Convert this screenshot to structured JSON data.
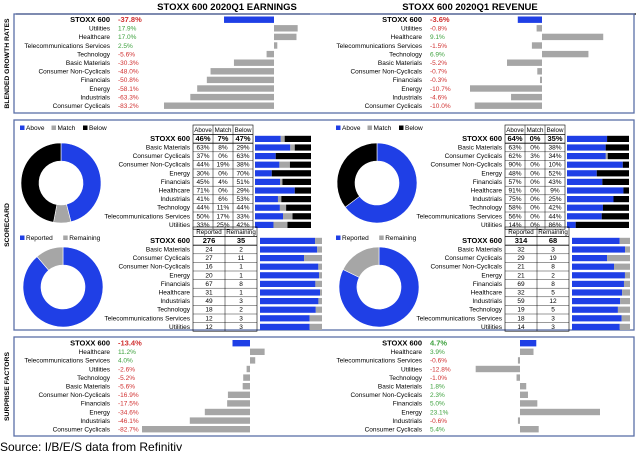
{
  "earnings_title": "STOXX 600 2020Q1 EARNINGS",
  "revenue_title": "STOXX 600 2020Q1 REVENUE",
  "section_labels": [
    "BLENDED GROWTH RATES",
    "SCORECARD",
    "SURPRISE FACTORS"
  ],
  "source": "Source: I/B/E/S data from Refinitiv",
  "colors": {
    "blue": "#1f3fe6",
    "gray": "#a6a6a6",
    "black": "#000000",
    "green": "#3ca03c",
    "red": "#d03030",
    "border": "#5b6fa8"
  },
  "chart_data": [
    {
      "type": "bar",
      "id": "earnings-growth",
      "categories": [
        "STOXX 600",
        "Utilities",
        "Healthcare",
        "Telecommunications Services",
        "Technology",
        "Basic Materials",
        "Consumer Non-Cyclicals",
        "Financials",
        "Energy",
        "Industrials",
        "Consumer Cyclicals"
      ],
      "values": [
        -37.8,
        17.9,
        17.0,
        2.5,
        -5.6,
        -30.3,
        -48.0,
        -50.8,
        -58.1,
        -63.3,
        -83.2
      ],
      "labels": [
        "-37.8%",
        "17.9%",
        "17.0%",
        "2.5%",
        "-5.6%",
        "-30.3%",
        "-48.0%",
        "-50.8%",
        "-58.1%",
        "-63.3%",
        "-83.2%"
      ]
    },
    {
      "type": "bar",
      "id": "revenue-growth",
      "categories": [
        "STOXX 600",
        "Utilities",
        "Healthcare",
        "Telecommunications Services",
        "Technology",
        "Basic Materials",
        "Consumer Non-Cyclicals",
        "Financials",
        "Energy",
        "Industrials",
        "Consumer Cyclicals"
      ],
      "values": [
        -3.6,
        -0.8,
        9.1,
        -1.5,
        6.9,
        -5.2,
        -0.7,
        -0.3,
        -10.7,
        -4.6,
        -10.0
      ],
      "labels": [
        "-3.6%",
        "-0.8%",
        "9.1%",
        "-1.5%",
        "6.9%",
        "-5.2%",
        "-0.7%",
        "-0.3%",
        "-10.7%",
        "-4.6%",
        "-10.0%"
      ]
    },
    {
      "type": "pie",
      "id": "earnings-beat-donut",
      "legend": [
        "Above",
        "Match",
        "Below"
      ],
      "values": [
        46,
        7,
        47
      ]
    },
    {
      "type": "table",
      "id": "earnings-beat-table",
      "columns": [
        "Above",
        "Match",
        "Below"
      ],
      "rows": [
        {
          "name": "STOXX 600",
          "cells": [
            "46%",
            "7%",
            "47%"
          ],
          "values": [
            46,
            7,
            47
          ]
        },
        {
          "name": "Basic Materials",
          "cells": [
            "63%",
            "8%",
            "29%"
          ],
          "values": [
            63,
            8,
            29
          ]
        },
        {
          "name": "Consumer Cyclicals",
          "cells": [
            "37%",
            "0%",
            "63%"
          ],
          "values": [
            37,
            0,
            63
          ]
        },
        {
          "name": "Consumer Non-Cyclicals",
          "cells": [
            "44%",
            "19%",
            "38%"
          ],
          "values": [
            44,
            19,
            38
          ]
        },
        {
          "name": "Energy",
          "cells": [
            "30%",
            "0%",
            "70%"
          ],
          "values": [
            30,
            0,
            70
          ]
        },
        {
          "name": "Financials",
          "cells": [
            "45%",
            "4%",
            "51%"
          ],
          "values": [
            45,
            4,
            51
          ]
        },
        {
          "name": "Healthcare",
          "cells": [
            "71%",
            "0%",
            "29%"
          ],
          "values": [
            71,
            0,
            29
          ]
        },
        {
          "name": "Industrials",
          "cells": [
            "41%",
            "6%",
            "53%"
          ],
          "values": [
            41,
            6,
            53
          ]
        },
        {
          "name": "Technology",
          "cells": [
            "44%",
            "11%",
            "44%"
          ],
          "values": [
            44,
            11,
            44
          ]
        },
        {
          "name": "Telecommunications Services",
          "cells": [
            "50%",
            "17%",
            "33%"
          ],
          "values": [
            50,
            17,
            33
          ]
        },
        {
          "name": "Utilities",
          "cells": [
            "33%",
            "25%",
            "42%"
          ],
          "values": [
            33,
            25,
            42
          ]
        }
      ]
    },
    {
      "type": "pie",
      "id": "revenue-beat-donut",
      "legend": [
        "Above",
        "Match",
        "Below"
      ],
      "values": [
        64,
        0,
        35
      ]
    },
    {
      "type": "table",
      "id": "revenue-beat-table",
      "columns": [
        "Above",
        "Match",
        "Below"
      ],
      "rows": [
        {
          "name": "STOXX 600",
          "cells": [
            "64%",
            "0%",
            "35%"
          ],
          "values": [
            64,
            0,
            35
          ]
        },
        {
          "name": "Basic Materials",
          "cells": [
            "63%",
            "0%",
            "38%"
          ],
          "values": [
            63,
            0,
            38
          ]
        },
        {
          "name": "Consumer Cyclicals",
          "cells": [
            "62%",
            "3%",
            "34%"
          ],
          "values": [
            62,
            3,
            34
          ]
        },
        {
          "name": "Consumer Non-Cyclicals",
          "cells": [
            "90%",
            "0%",
            "10%"
          ],
          "values": [
            90,
            0,
            10
          ]
        },
        {
          "name": "Energy",
          "cells": [
            "48%",
            "0%",
            "52%"
          ],
          "values": [
            48,
            0,
            52
          ]
        },
        {
          "name": "Financials",
          "cells": [
            "57%",
            "0%",
            "43%"
          ],
          "values": [
            57,
            0,
            43
          ]
        },
        {
          "name": "Healthcare",
          "cells": [
            "91%",
            "0%",
            "9%"
          ],
          "values": [
            91,
            0,
            9
          ]
        },
        {
          "name": "Industrials",
          "cells": [
            "75%",
            "0%",
            "25%"
          ],
          "values": [
            75,
            0,
            25
          ]
        },
        {
          "name": "Technology",
          "cells": [
            "58%",
            "0%",
            "42%"
          ],
          "values": [
            58,
            0,
            42
          ]
        },
        {
          "name": "Telecommunications Services",
          "cells": [
            "56%",
            "0%",
            "44%"
          ],
          "values": [
            56,
            0,
            44
          ]
        },
        {
          "name": "Utilities",
          "cells": [
            "14%",
            "0%",
            "86%"
          ],
          "values": [
            14,
            0,
            86
          ]
        }
      ]
    },
    {
      "type": "pie",
      "id": "earnings-reported-donut",
      "legend": [
        "Reported",
        "Remaining"
      ],
      "values": [
        276,
        35
      ]
    },
    {
      "type": "table",
      "id": "earnings-reported-table",
      "columns": [
        "Reported",
        "Remaining"
      ],
      "rows": [
        {
          "name": "STOXX 600",
          "cells": [
            "276",
            "35"
          ],
          "values": [
            276,
            35
          ]
        },
        {
          "name": "Basic Materials",
          "cells": [
            "24",
            "2"
          ],
          "values": [
            24,
            2
          ]
        },
        {
          "name": "Consumer Cyclicals",
          "cells": [
            "27",
            "11"
          ],
          "values": [
            27,
            11
          ]
        },
        {
          "name": "Consumer Non-Cyclicals",
          "cells": [
            "16",
            "1"
          ],
          "values": [
            16,
            1
          ]
        },
        {
          "name": "Energy",
          "cells": [
            "20",
            "1"
          ],
          "values": [
            20,
            1
          ]
        },
        {
          "name": "Financials",
          "cells": [
            "67",
            "8"
          ],
          "values": [
            67,
            8
          ]
        },
        {
          "name": "Healthcare",
          "cells": [
            "31",
            "1"
          ],
          "values": [
            31,
            1
          ]
        },
        {
          "name": "Industrials",
          "cells": [
            "49",
            "3"
          ],
          "values": [
            49,
            3
          ]
        },
        {
          "name": "Technology",
          "cells": [
            "18",
            "2"
          ],
          "values": [
            18,
            2
          ]
        },
        {
          "name": "Telecommunications Services",
          "cells": [
            "12",
            "3"
          ],
          "values": [
            12,
            3
          ]
        },
        {
          "name": "Utilities",
          "cells": [
            "12",
            "3"
          ],
          "values": [
            12,
            3
          ]
        }
      ]
    },
    {
      "type": "pie",
      "id": "revenue-reported-donut",
      "legend": [
        "Reported",
        "Remaining"
      ],
      "values": [
        314,
        68
      ]
    },
    {
      "type": "table",
      "id": "revenue-reported-table",
      "columns": [
        "Reported",
        "Remaining"
      ],
      "rows": [
        {
          "name": "STOXX 600",
          "cells": [
            "314",
            "68"
          ],
          "values": [
            314,
            68
          ]
        },
        {
          "name": "Basic Materials",
          "cells": [
            "32",
            "3"
          ],
          "values": [
            32,
            3
          ]
        },
        {
          "name": "Consumer Cyclicals",
          "cells": [
            "29",
            "19"
          ],
          "values": [
            29,
            19
          ]
        },
        {
          "name": "Consumer Non-Cyclicals",
          "cells": [
            "21",
            "8"
          ],
          "values": [
            21,
            8
          ]
        },
        {
          "name": "Energy",
          "cells": [
            "21",
            "2"
          ],
          "values": [
            21,
            2
          ]
        },
        {
          "name": "Financials",
          "cells": [
            "69",
            "8"
          ],
          "values": [
            69,
            8
          ]
        },
        {
          "name": "Healthcare",
          "cells": [
            "32",
            "5"
          ],
          "values": [
            32,
            5
          ]
        },
        {
          "name": "Industrials",
          "cells": [
            "59",
            "12"
          ],
          "values": [
            59,
            12
          ]
        },
        {
          "name": "Technology",
          "cells": [
            "19",
            "5"
          ],
          "values": [
            19,
            5
          ]
        },
        {
          "name": "Telecommunications Services",
          "cells": [
            "18",
            "3"
          ],
          "values": [
            18,
            3
          ]
        },
        {
          "name": "Utilities",
          "cells": [
            "14",
            "3"
          ],
          "values": [
            14,
            3
          ]
        }
      ]
    },
    {
      "type": "bar",
      "id": "earnings-surprise",
      "categories": [
        "STOXX 600",
        "Healthcare",
        "Telecommunications Services",
        "Utilities",
        "Technology",
        "Basic Materials",
        "Consumer Non-Cyclicals",
        "Financials",
        "Energy",
        "Industrials",
        "Consumer Cyclicals"
      ],
      "values": [
        -13.4,
        11.2,
        4.0,
        -2.6,
        -5.2,
        -5.6,
        -16.9,
        -17.5,
        -34.6,
        -46.1,
        -82.7
      ],
      "labels": [
        "-13.4%",
        "11.2%",
        "4.0%",
        "-2.6%",
        "-5.2%",
        "-5.6%",
        "-16.9%",
        "-17.5%",
        "-34.6%",
        "-46.1%",
        "-82.7%"
      ]
    },
    {
      "type": "bar",
      "id": "revenue-surprise",
      "categories": [
        "STOXX 600",
        "Healthcare",
        "Telecommunications Services",
        "Utilities",
        "Technology",
        "Basic Materials",
        "Consumer Non-Cyclicals",
        "Financials",
        "Energy",
        "Industrials",
        "Consumer Cyclicals"
      ],
      "values": [
        4.7,
        3.9,
        -0.6,
        -12.8,
        -1.0,
        1.8,
        2.3,
        5.0,
        23.1,
        -0.6,
        5.4
      ],
      "labels": [
        "4.7%",
        "3.9%",
        "-0.6%",
        "-12.8%",
        "-1.0%",
        "1.8%",
        "2.3%",
        "5.0%",
        "23.1%",
        "-0.6%",
        "5.4%"
      ]
    }
  ]
}
